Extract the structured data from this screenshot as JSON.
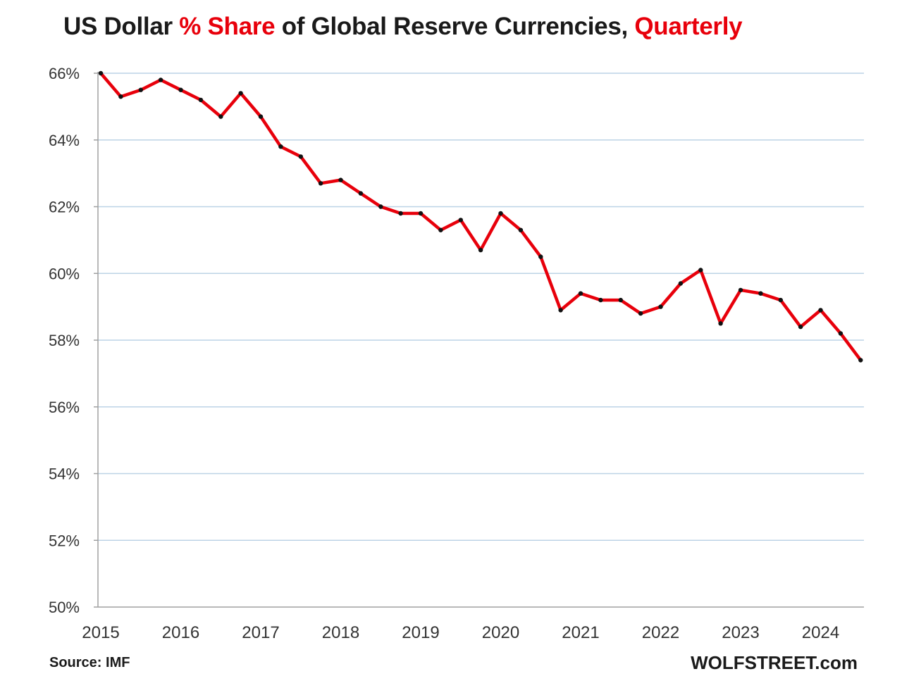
{
  "chart_data": {
    "type": "line",
    "title": "US Dollar % Share of Global Reserve Currencies, Quarterly",
    "title_parts": [
      {
        "text": "US Dollar ",
        "highlight": false
      },
      {
        "text": "% Share",
        "highlight": true
      },
      {
        "text": " of Global Reserve Currencies, ",
        "highlight": false
      },
      {
        "text": "Quarterly",
        "highlight": true
      }
    ],
    "xlabel": "",
    "ylabel": "",
    "ylim": [
      50,
      66
    ],
    "xlim": [
      2015,
      2024.75
    ],
    "yticks": [
      50,
      52,
      54,
      56,
      58,
      60,
      62,
      64,
      66
    ],
    "ytick_labels": [
      "50%",
      "52%",
      "54%",
      "56%",
      "58%",
      "60%",
      "62%",
      "64%",
      "66%"
    ],
    "xticks": [
      2015,
      2016,
      2017,
      2018,
      2019,
      2020,
      2021,
      2022,
      2023,
      2024
    ],
    "xtick_labels": [
      "2015",
      "2016",
      "2017",
      "2018",
      "2019",
      "2020",
      "2021",
      "2022",
      "2023",
      "2024"
    ],
    "grid": true,
    "series": [
      {
        "name": "USD share",
        "color": "#e8000b",
        "marker_color": "#111111",
        "x": [
          2015.0,
          2015.25,
          2015.5,
          2015.75,
          2016.0,
          2016.25,
          2016.5,
          2016.75,
          2017.0,
          2017.25,
          2017.5,
          2017.75,
          2018.0,
          2018.25,
          2018.5,
          2018.75,
          2019.0,
          2019.25,
          2019.5,
          2019.75,
          2020.0,
          2020.25,
          2020.5,
          2020.75,
          2021.0,
          2021.25,
          2021.5,
          2021.75,
          2022.0,
          2022.25,
          2022.5,
          2022.75,
          2023.0,
          2023.25,
          2023.5,
          2023.75,
          2024.0,
          2024.25,
          2024.5
        ],
        "values": [
          66.0,
          65.3,
          65.5,
          65.8,
          65.5,
          65.2,
          64.7,
          65.4,
          64.7,
          63.8,
          63.5,
          62.7,
          62.8,
          62.4,
          62.0,
          61.8,
          61.8,
          61.3,
          61.6,
          60.7,
          61.8,
          61.3,
          60.5,
          58.9,
          59.4,
          59.2,
          59.2,
          58.8,
          59.0,
          59.7,
          60.1,
          58.5,
          59.5,
          59.4,
          59.2,
          58.4,
          58.9,
          58.2,
          57.4
        ]
      }
    ],
    "annotations": {
      "source": "Source: IMF",
      "brand": "WOLFSTREET.com"
    }
  }
}
